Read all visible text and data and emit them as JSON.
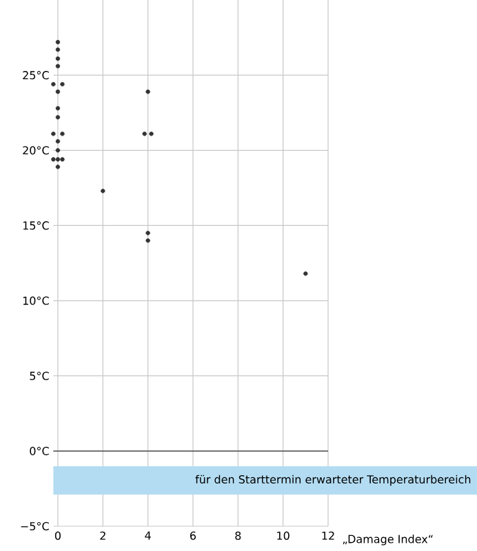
{
  "chart_data": {
    "type": "scatter",
    "xlabel": "„Damage Index“",
    "xlim": [
      -0.2,
      12
    ],
    "ylim": [
      -5,
      30
    ],
    "xticks": [
      0,
      2,
      4,
      6,
      8,
      10,
      12
    ],
    "yticks": [
      {
        "value": -5,
        "label": "−5°C"
      },
      {
        "value": 0,
        "label": "0°C"
      },
      {
        "value": 5,
        "label": "5°C"
      },
      {
        "value": 10,
        "label": "10°C"
      },
      {
        "value": 15,
        "label": "15°C"
      },
      {
        "value": 20,
        "label": "20°C"
      },
      {
        "value": 25,
        "label": "25°C"
      }
    ],
    "grid": true,
    "marker": "circle",
    "series": [
      {
        "color": "#333333",
        "x": [
          0,
          0,
          0,
          0,
          -0.2,
          0.2,
          0,
          0,
          0,
          -0.2,
          0.2,
          0,
          0,
          -0.2,
          0,
          0.2,
          0,
          2,
          4,
          3.85,
          4.15,
          4,
          4,
          11
        ],
        "values": [
          27.2,
          26.7,
          26.1,
          25.6,
          24.4,
          24.4,
          23.9,
          22.8,
          22.2,
          21.1,
          21.1,
          20.6,
          20.0,
          19.4,
          19.4,
          19.4,
          18.9,
          17.3,
          23.9,
          21.1,
          21.1,
          14.5,
          14.0,
          11.8
        ]
      }
    ],
    "ref_lines": [
      {
        "axis": "y",
        "value": 0,
        "color": "#333333"
      }
    ],
    "bands": [
      {
        "axis": "y",
        "from": -1.0,
        "to": -2.9,
        "label": "für den Starttermin erwarteter Temperaturbereich",
        "color": "#b3dcf2"
      }
    ]
  }
}
